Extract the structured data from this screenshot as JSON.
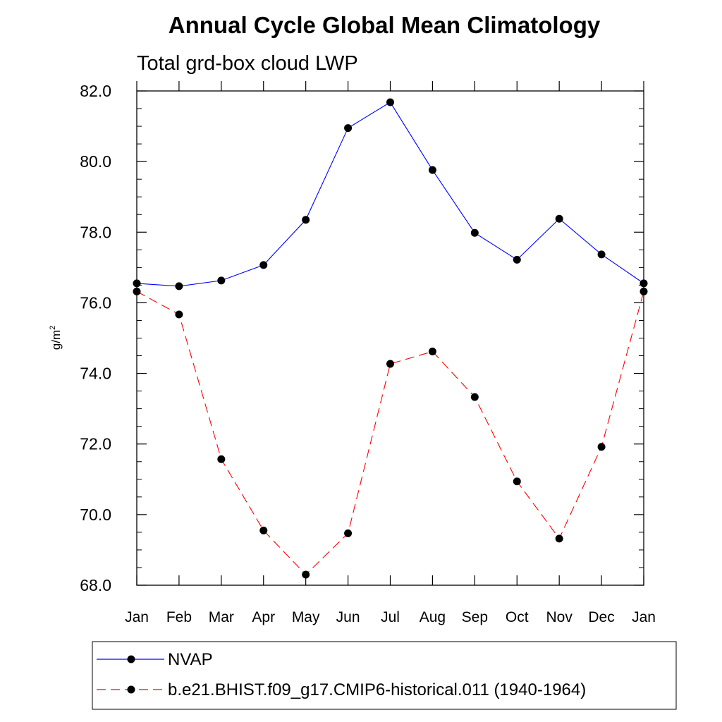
{
  "chart_data": {
    "type": "line",
    "title": "Annual Cycle Global Mean Climatology",
    "subtitle": "Total grd-box cloud LWP",
    "ylabel": "g/m",
    "ylabel_sup": "2",
    "xlabel": "",
    "categories": [
      "Jan",
      "Feb",
      "Mar",
      "Apr",
      "May",
      "Jun",
      "Jul",
      "Aug",
      "Sep",
      "Oct",
      "Nov",
      "Dec",
      "Jan"
    ],
    "ylim": [
      68.0,
      82.0
    ],
    "yticks": [
      "68.0",
      "70.0",
      "72.0",
      "74.0",
      "76.0",
      "78.0",
      "80.0",
      "82.0"
    ],
    "ytick_values": [
      68,
      70,
      72,
      74,
      76,
      78,
      80,
      82
    ],
    "series": [
      {
        "name": "NVAP",
        "color": "#0000ff",
        "dash": "solid",
        "values": [
          76.55,
          76.47,
          76.63,
          77.07,
          78.35,
          80.95,
          81.68,
          79.76,
          77.98,
          77.22,
          78.38,
          77.37,
          76.55
        ]
      },
      {
        "name": "b.e21.BHIST.f09_g17.CMIP6-historical.011 (1940-1964)",
        "color": "#ff0000",
        "dash": "dashed",
        "values": [
          76.32,
          75.67,
          71.57,
          69.55,
          68.3,
          69.47,
          74.27,
          74.62,
          73.33,
          70.94,
          69.32,
          71.92,
          76.32
        ]
      }
    ],
    "legend_position": "bottom"
  }
}
